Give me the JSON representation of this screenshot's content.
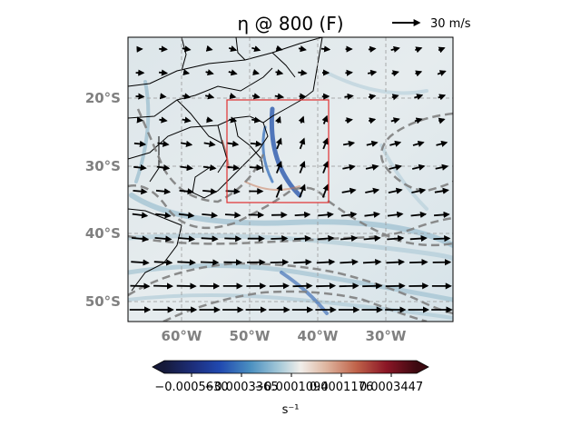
{
  "map": {
    "title": "η @ 800 (F)",
    "projection": "PlateCarree",
    "extent": {
      "lon_min": -68,
      "lon_max": -20,
      "lat_min": -53,
      "lat_max": -11
    },
    "lat_ticks": [
      {
        "value": -20,
        "label": "20°S"
      },
      {
        "value": -30,
        "label": "30°S"
      },
      {
        "value": -40,
        "label": "40°S"
      },
      {
        "value": -50,
        "label": "50°S"
      }
    ],
    "lon_ticks": [
      {
        "value": -60,
        "label": "60°W"
      },
      {
        "value": -50,
        "label": "50°W"
      },
      {
        "value": -40,
        "label": "40°W"
      },
      {
        "value": -30,
        "label": "30°W"
      }
    ],
    "gridlines": true,
    "box": {
      "lon_min": -53.5,
      "lon_max": -38.5,
      "lat_min": -35.5,
      "lat_max": -20,
      "color": "#e03030"
    },
    "wind_reference": {
      "label": "30 m/s",
      "speed": 30
    },
    "field_colormap": "diverging blue-white-red (balance)",
    "contour_style": "gray dashed"
  },
  "colorbar": {
    "unit": "s⁻¹",
    "ticks": [
      "−0.0005630",
      "−0.0003365",
      "−0.0001094",
      "0.0001176",
      "0.0003447"
    ],
    "colors": [
      "#161a3a",
      "#1e3fa8",
      "#4a8fc0",
      "#b6d3df",
      "#f1eeea",
      "#dfb6a0",
      "#b8533e",
      "#7a0d1f",
      "#3c0910"
    ]
  }
}
